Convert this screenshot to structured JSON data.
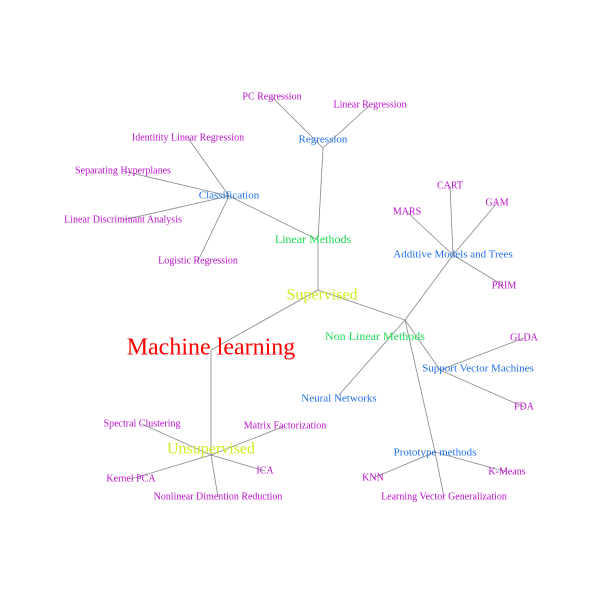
{
  "mindmap": {
    "colors": {
      "root": "#ff0000",
      "level1": "#ccee22",
      "level2": "#22dd55",
      "level3": "#1f6fe8",
      "leaf": "#bb11cc",
      "edge": "#888888",
      "background": "#ffffff"
    },
    "nodes": [
      {
        "id": "ml",
        "label": "Machine learning",
        "level": "root"
      },
      {
        "id": "sup",
        "label": "Supervised",
        "level": "level1"
      },
      {
        "id": "unsup",
        "label": "Unsupervised",
        "level": "level1"
      },
      {
        "id": "lin",
        "label": "Linear Methods",
        "level": "level2"
      },
      {
        "id": "nonlin",
        "label": "Non Linear Methods",
        "level": "level2"
      },
      {
        "id": "reg",
        "label": "Regression",
        "level": "level3"
      },
      {
        "id": "cls",
        "label": "Classification",
        "level": "level3"
      },
      {
        "id": "amt",
        "label": "Additive Models and Trees",
        "level": "level3"
      },
      {
        "id": "svm",
        "label": "Support Vector Machines",
        "level": "level3"
      },
      {
        "id": "nn",
        "label": "Neural Networks",
        "level": "level3"
      },
      {
        "id": "proto",
        "label": "Prototype methods",
        "level": "level3"
      },
      {
        "id": "pcr",
        "label": "PC Regression",
        "level": "leaf"
      },
      {
        "id": "lr",
        "label": "Linear Regression",
        "level": "leaf"
      },
      {
        "id": "ilr",
        "label": "Identitity Linear Regression",
        "level": "leaf"
      },
      {
        "id": "sh",
        "label": "Separating Hyperplanes",
        "level": "leaf"
      },
      {
        "id": "lda",
        "label": "Linear Discriminant Analysis",
        "level": "leaf"
      },
      {
        "id": "logr",
        "label": "Logistic Regression",
        "level": "leaf"
      },
      {
        "id": "cart",
        "label": "CART",
        "level": "leaf"
      },
      {
        "id": "gam",
        "label": "GAM",
        "level": "leaf"
      },
      {
        "id": "mars",
        "label": "MARS",
        "level": "leaf"
      },
      {
        "id": "prim",
        "label": "PRIM",
        "level": "leaf"
      },
      {
        "id": "glda",
        "label": "GLDA",
        "level": "leaf"
      },
      {
        "id": "fda",
        "label": "FDA",
        "level": "leaf"
      },
      {
        "id": "knn",
        "label": "KNN",
        "level": "leaf"
      },
      {
        "id": "kmeans",
        "label": "K-Means",
        "level": "leaf"
      },
      {
        "id": "lvg",
        "label": "Learning Vector Generalization",
        "level": "leaf"
      },
      {
        "id": "spec",
        "label": "Spectral Clustering",
        "level": "leaf"
      },
      {
        "id": "mf",
        "label": "Matrix Factorization",
        "level": "leaf"
      },
      {
        "id": "ica",
        "label": "ICA",
        "level": "leaf"
      },
      {
        "id": "kpca",
        "label": "Kernel PCA",
        "level": "leaf"
      },
      {
        "id": "ndr",
        "label": "Nonlinear Dimention Reduction",
        "level": "leaf"
      }
    ],
    "edges": [
      [
        "ml",
        "sup"
      ],
      [
        "ml",
        "unsup"
      ],
      [
        "sup",
        "lin"
      ],
      [
        "sup",
        "nonlin"
      ],
      [
        "lin",
        "reg"
      ],
      [
        "lin",
        "cls"
      ],
      [
        "reg",
        "pcr"
      ],
      [
        "reg",
        "lr"
      ],
      [
        "cls",
        "ilr"
      ],
      [
        "cls",
        "sh"
      ],
      [
        "cls",
        "lda"
      ],
      [
        "cls",
        "logr"
      ],
      [
        "nonlin",
        "amt"
      ],
      [
        "nonlin",
        "svm"
      ],
      [
        "nonlin",
        "nn"
      ],
      [
        "nonlin",
        "proto"
      ],
      [
        "amt",
        "cart"
      ],
      [
        "amt",
        "gam"
      ],
      [
        "amt",
        "mars"
      ],
      [
        "amt",
        "prim"
      ],
      [
        "svm",
        "glda"
      ],
      [
        "svm",
        "fda"
      ],
      [
        "proto",
        "knn"
      ],
      [
        "proto",
        "kmeans"
      ],
      [
        "proto",
        "lvg"
      ],
      [
        "unsup",
        "spec"
      ],
      [
        "unsup",
        "mf"
      ],
      [
        "unsup",
        "ica"
      ],
      [
        "unsup",
        "kpca"
      ],
      [
        "unsup",
        "ndr"
      ]
    ]
  }
}
